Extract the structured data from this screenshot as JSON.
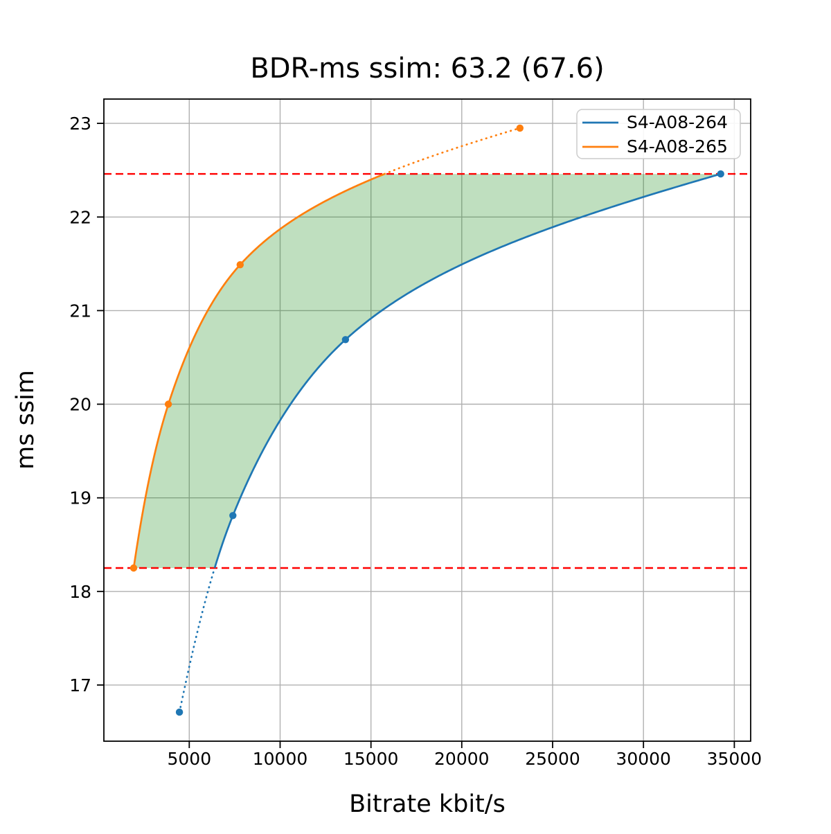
{
  "chart_data": {
    "type": "line",
    "title": "BDR-ms ssim: 63.2 (67.6)",
    "xlabel": "Bitrate kbit/s",
    "ylabel": "ms ssim",
    "xlim": [
      300,
      35900
    ],
    "ylim": [
      16.4,
      23.26
    ],
    "xticks": [
      5000,
      10000,
      15000,
      20000,
      25000,
      30000,
      35000
    ],
    "yticks": [
      17,
      18,
      19,
      20,
      21,
      22,
      23
    ],
    "grid": true,
    "grid_color": "#b0b0b0",
    "interpolation": "pchip-log-x",
    "legend_position": "upper right",
    "series": [
      {
        "name": "S4-A08-264",
        "color": "#1f77b4",
        "points": [
          [
            4460,
            16.71
          ],
          [
            7400,
            18.81
          ],
          [
            13600,
            20.69
          ],
          [
            34250,
            22.46
          ]
        ]
      },
      {
        "name": "S4-A08-265",
        "color": "#ff7f0e",
        "points": [
          [
            1940,
            18.25
          ],
          [
            3850,
            20.0
          ],
          [
            7800,
            21.49
          ],
          [
            23200,
            22.95
          ]
        ]
      }
    ],
    "overlap_lines": {
      "color": "#ff0000",
      "style": "dashed",
      "y_values": [
        18.25,
        22.46
      ]
    },
    "fill_between": {
      "color": "#008000",
      "alpha": 0.25,
      "y_range": [
        18.25,
        22.46
      ]
    }
  }
}
